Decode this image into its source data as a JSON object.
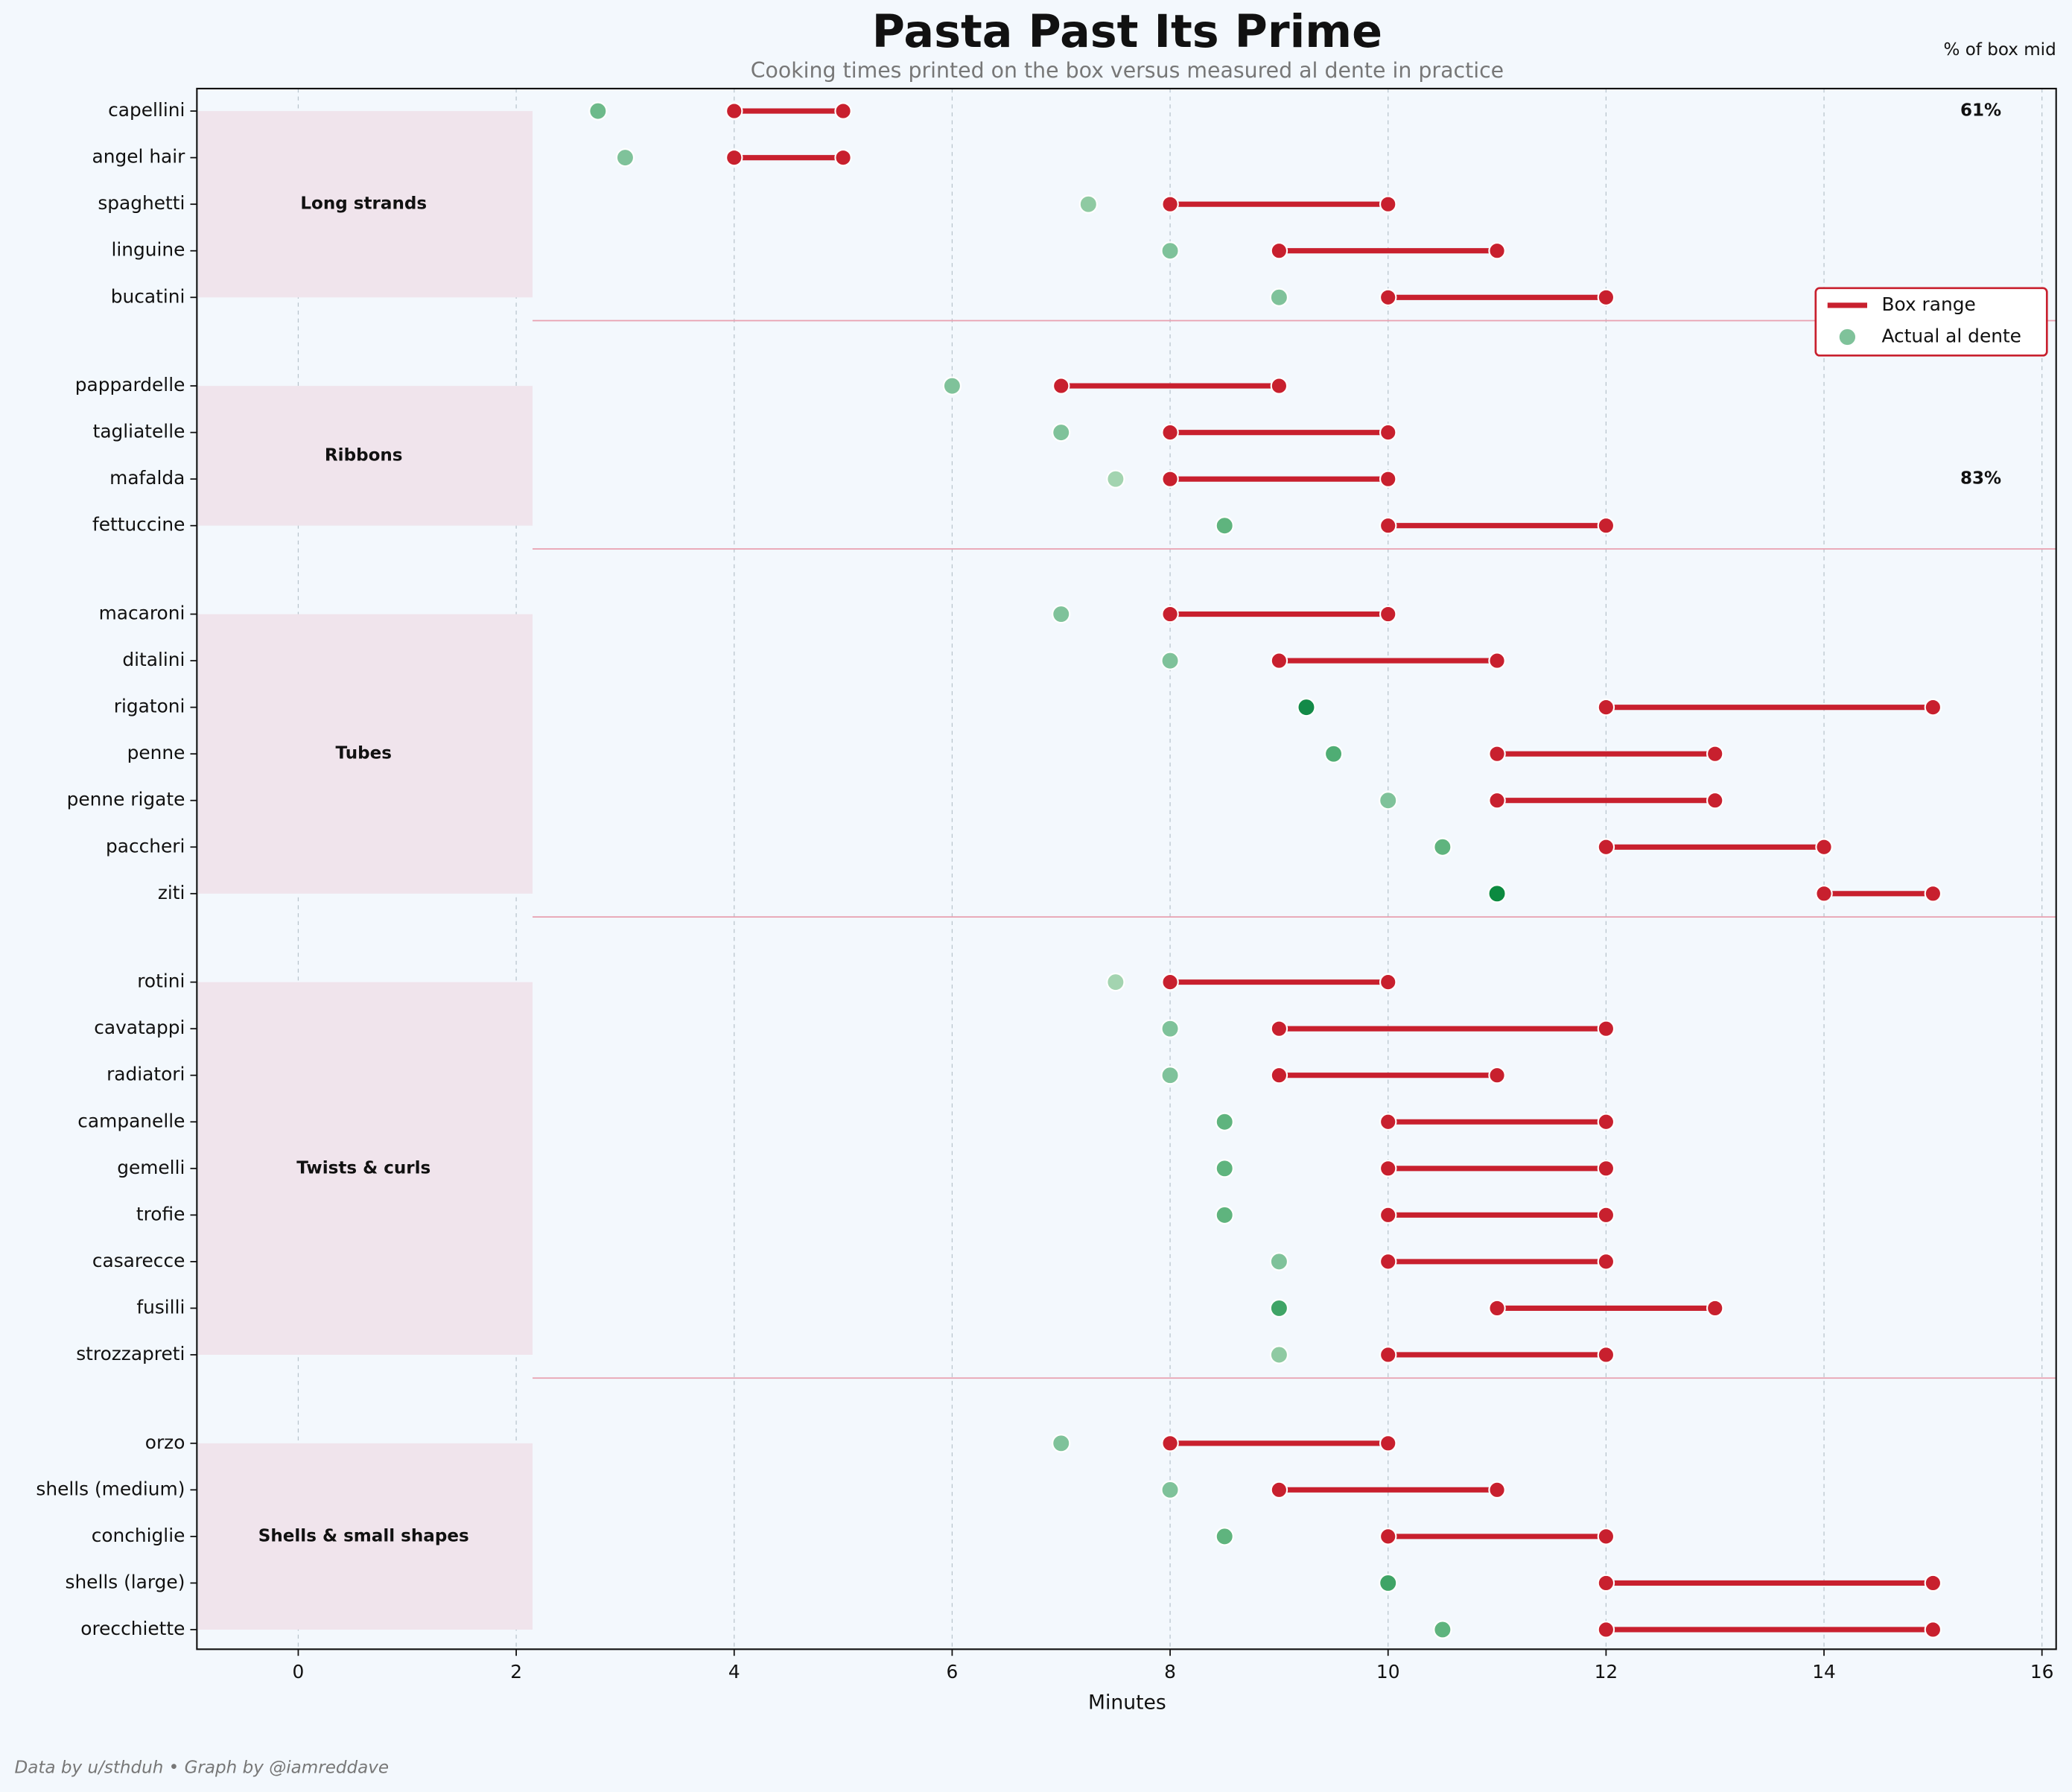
{
  "chart_data": {
    "type": "dumbbell",
    "title": "Pasta Past Its Prime",
    "subtitle": "Cooking times printed on the box versus measured al dente in practice",
    "xlabel": "Minutes",
    "footer": "Data by u/sthduh  •  Graph by @iamreddave",
    "corner_note": "% of box mid",
    "xlim": [
      -0.93,
      16.13
    ],
    "xticks": [
      0,
      2,
      4,
      6,
      8,
      10,
      12,
      14,
      16
    ],
    "grid": true,
    "box_color": "#c8202e",
    "legend": {
      "position": "upper right",
      "box_label": "Box range",
      "actual_label": "Actual al dente",
      "actual_color": "#7fc29a"
    },
    "annotations": [
      {
        "text": "61%",
        "at": "capellini"
      },
      {
        "text": "83%",
        "at": "mafalda"
      }
    ],
    "groups": [
      {
        "label": "Long strands",
        "categories": [
          "capellini",
          "angel hair",
          "spaghetti",
          "linguine",
          "bucatini"
        ],
        "box_min": [
          4,
          4,
          8,
          9,
          10
        ],
        "box_max": [
          5,
          5,
          10,
          11,
          12
        ],
        "actual": [
          2.75,
          3,
          7.25,
          8,
          9
        ],
        "actual_colors": [
          "#6dba8a",
          "#7fc29a",
          "#8fcaa2",
          "#7fc29a",
          "#7fc29a"
        ]
      },
      {
        "label": "Ribbons",
        "categories": [
          "pappardelle",
          "tagliatelle",
          "mafalda",
          "fettuccine"
        ],
        "box_min": [
          7,
          8,
          8,
          10
        ],
        "box_max": [
          9,
          10,
          10,
          12
        ],
        "actual": [
          6,
          7,
          7.5,
          8.5
        ],
        "actual_colors": [
          "#7fc29a",
          "#7fc29a",
          "#a3d4b0",
          "#5fb47e"
        ]
      },
      {
        "label": "Tubes",
        "categories": [
          "macaroni",
          "ditalini",
          "rigatoni",
          "penne",
          "penne rigate",
          "paccheri",
          "ziti"
        ],
        "box_min": [
          8,
          9,
          12,
          11,
          11,
          12,
          14
        ],
        "box_max": [
          10,
          11,
          15,
          13,
          13,
          14,
          15
        ],
        "actual": [
          7,
          8,
          9.25,
          9.5,
          10,
          10.5,
          11
        ],
        "actual_colors": [
          "#7fc29a",
          "#7fc29a",
          "#138a48",
          "#4fad74",
          "#7fc29a",
          "#5fb47e",
          "#0b8a40"
        ]
      },
      {
        "label": "Twists & curls",
        "categories": [
          "rotini",
          "cavatappi",
          "radiatori",
          "campanelle",
          "gemelli",
          "trofie",
          "casarecce",
          "fusilli",
          "strozzapreti"
        ],
        "box_min": [
          8,
          9,
          9,
          10,
          10,
          10,
          10,
          11,
          10
        ],
        "box_max": [
          10,
          12,
          11,
          12,
          12,
          12,
          12,
          13,
          12
        ],
        "actual": [
          7.5,
          8,
          8,
          8.5,
          8.5,
          8.5,
          9,
          9,
          9
        ],
        "actual_colors": [
          "#a3d4b0",
          "#7fc29a",
          "#7fc29a",
          "#5fb47e",
          "#5fb47e",
          "#5fb47e",
          "#7fc29a",
          "#3fa466",
          "#8fcaa2"
        ]
      },
      {
        "label": "Shells & small shapes",
        "categories": [
          "orzo",
          "shells (medium)",
          "conchiglie",
          "shells (large)",
          "orecchiette"
        ],
        "box_min": [
          8,
          9,
          10,
          12,
          12
        ],
        "box_max": [
          10,
          11,
          12,
          15,
          15
        ],
        "actual": [
          7,
          8,
          8.5,
          10,
          10.5
        ],
        "actual_colors": [
          "#7fc29a",
          "#7fc29a",
          "#5fb47e",
          "#3fa466",
          "#5fb47e"
        ]
      }
    ]
  }
}
